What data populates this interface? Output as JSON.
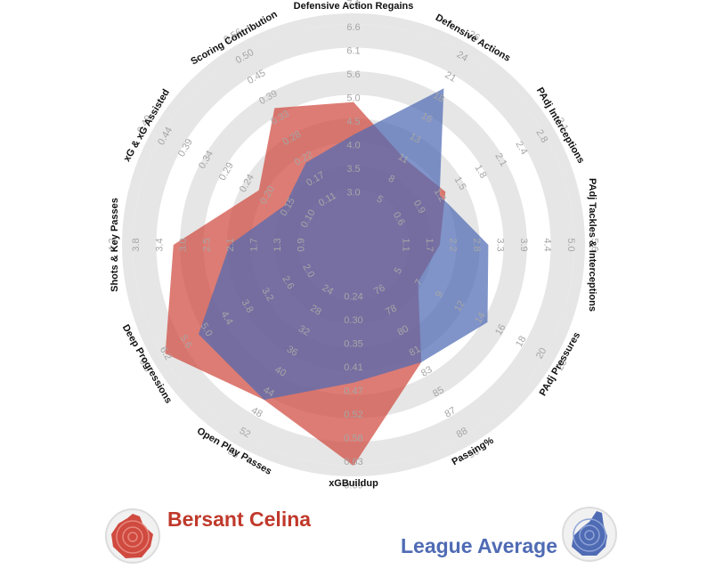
{
  "chart_data": {
    "type": "radar",
    "parameters": [
      "Defensive Action Regains",
      "Defensive Actions",
      "PAdj Interceptions",
      "PAdj Tackles & Interceptions",
      "PAdj Pressures",
      "Passing%",
      "xGBuildup",
      "Open Play Passes",
      "Deep Progressions",
      "Shots & Key Passes",
      "xG & xG Assisted",
      "Scoring Contribution"
    ],
    "ticks": [
      [
        "3.0",
        "3.5",
        "4.0",
        "4.5",
        "5.0",
        "5.6",
        "6.1",
        "6.6",
        "7.1"
      ],
      [
        "5",
        "8",
        "11",
        "13",
        "16",
        "18",
        "21",
        "24",
        "26"
      ],
      [
        "0.6",
        "0.9",
        "1.2",
        "1.5",
        "1.8",
        "2.1",
        "2.4",
        "2.8",
        "3.1"
      ],
      [
        "1.1",
        "1.7",
        "2.2",
        "2.8",
        "3.3",
        "3.9",
        "4.4",
        "5.0",
        "5.6"
      ],
      [
        "5",
        "7",
        "9",
        "12",
        "14",
        "16",
        "18",
        "20",
        "23"
      ],
      [
        "76",
        "78",
        "80",
        "81",
        "83",
        "85",
        "87",
        "88",
        "90"
      ],
      [
        "0.24",
        "0.30",
        "0.35",
        "0.41",
        "0.47",
        "0.52",
        "0.58",
        "0.63",
        "0.69"
      ],
      [
        "24",
        "28",
        "32",
        "36",
        "40",
        "44",
        "48",
        "52",
        "56"
      ],
      [
        "2.0",
        "2.6",
        "3.2",
        "3.8",
        "4.4",
        "5.0",
        "5.6",
        "6.2",
        "6.8"
      ],
      [
        "0.9",
        "1.3",
        "1.7",
        "2.1",
        "2.5",
        "3.0",
        "3.4",
        "3.8",
        "4.2"
      ],
      [
        "0.10",
        "0.15",
        "0.20",
        "0.24",
        "0.29",
        "0.34",
        "0.39",
        "0.44",
        "0.49"
      ],
      [
        "0.11",
        "0.17",
        "0.22",
        "0.28",
        "0.33",
        "0.39",
        "0.45",
        "0.50",
        "0.56"
      ]
    ],
    "range_min": [
      2.5,
      2.5,
      0.3,
      0.55,
      3,
      74.5,
      0.19,
      20,
      1.4,
      0.5,
      0.05,
      0.05
    ],
    "range_max": [
      7.1,
      26,
      3.1,
      5.6,
      23,
      90,
      0.69,
      56,
      6.8,
      4.2,
      0.49,
      0.56
    ],
    "series": [
      {
        "name": "Bersant Celina",
        "color": "#d04a3f",
        "values": [
          5.2,
          11,
          1.4,
          2.0,
          7.5,
          83,
          0.69,
          48,
          6.7,
          3.4,
          0.23,
          0.39
        ]
      },
      {
        "name": "League Average",
        "color": "#4f6bb4",
        "values": [
          4.4,
          21,
          1.3,
          3.3,
          16,
          83,
          0.47,
          48,
          5.6,
          2.3,
          0.16,
          0.22
        ]
      }
    ]
  }
}
